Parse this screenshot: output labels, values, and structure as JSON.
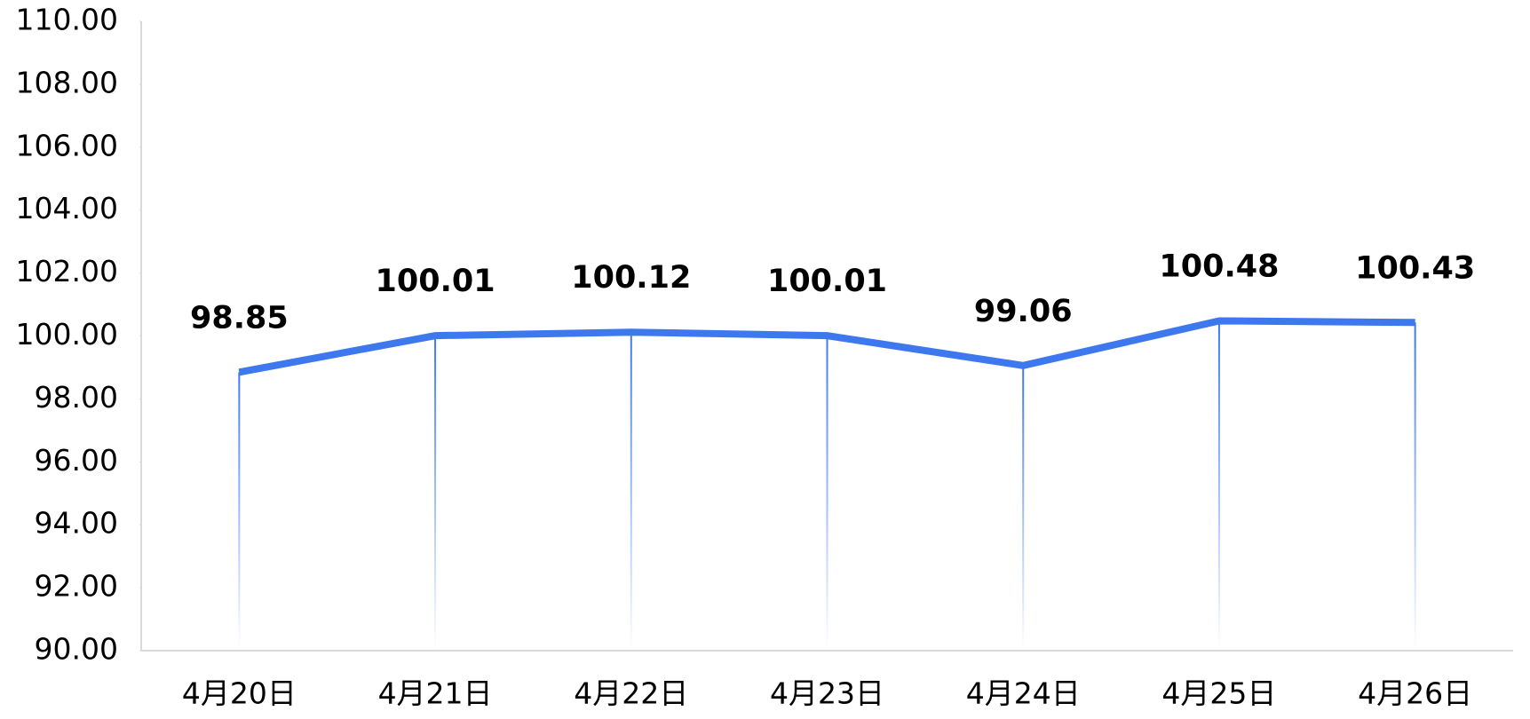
{
  "chart_data": {
    "type": "line",
    "categories": [
      "4月20日",
      "4月21日",
      "4月22日",
      "4月23日",
      "4月24日",
      "4月25日",
      "4月26日"
    ],
    "values": [
      98.85,
      100.01,
      100.12,
      100.01,
      99.06,
      100.48,
      100.43
    ],
    "color": "#3d78ef",
    "drop_lines": true,
    "ylim": [
      90,
      110
    ],
    "yticks": [
      {
        "value": 90,
        "label": "90.00"
      },
      {
        "value": 92,
        "label": "92.00"
      },
      {
        "value": 94,
        "label": "94.00"
      },
      {
        "value": 96,
        "label": "96.00"
      },
      {
        "value": 98,
        "label": "98.00"
      },
      {
        "value": 100,
        "label": "100.00"
      },
      {
        "value": 102,
        "label": "102.00"
      },
      {
        "value": 104,
        "label": "104.00"
      },
      {
        "value": 106,
        "label": "106.00"
      },
      {
        "value": 108,
        "label": "108.00"
      },
      {
        "value": 110,
        "label": "110.00"
      }
    ],
    "grid": false
  }
}
